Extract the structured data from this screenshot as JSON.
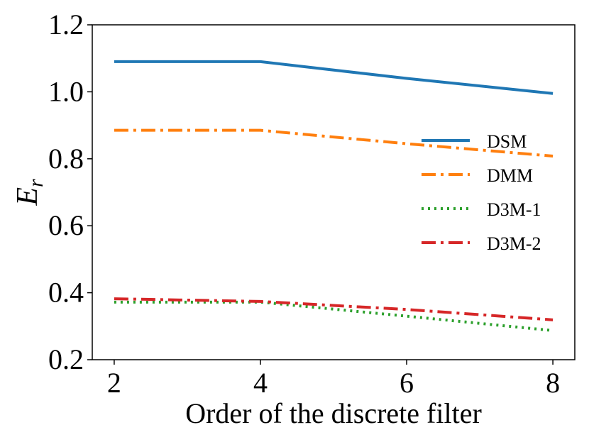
{
  "chart_data": {
    "type": "line",
    "title": "",
    "xlabel": "Order of the discrete filter",
    "ylabel_main": "E",
    "ylabel_sub": "r",
    "x": [
      2,
      4,
      6,
      8
    ],
    "xlim": [
      1.7,
      8.3
    ],
    "ylim": [
      0.2,
      1.2
    ],
    "xticks": [
      "2",
      "4",
      "6",
      "8"
    ],
    "yticks": [
      "0.2",
      "0.4",
      "0.6",
      "0.8",
      "1.0",
      "1.2"
    ],
    "grid": false,
    "legend_position": "center-right",
    "series": [
      {
        "name": "DSM",
        "values": [
          1.09,
          1.09,
          1.04,
          0.995
        ],
        "color": "#1f77b4",
        "style": "solid"
      },
      {
        "name": "DMM",
        "values": [
          0.885,
          0.885,
          0.845,
          0.808
        ],
        "color": "#ff7f0e",
        "style": "dashdot"
      },
      {
        "name": "D3M-1",
        "values": [
          0.372,
          0.372,
          0.33,
          0.287
        ],
        "color": "#2ca02c",
        "style": "dotted"
      },
      {
        "name": "D3M-2",
        "values": [
          0.382,
          0.374,
          0.35,
          0.319
        ],
        "color": "#d62728",
        "style": "dashdot"
      }
    ]
  }
}
